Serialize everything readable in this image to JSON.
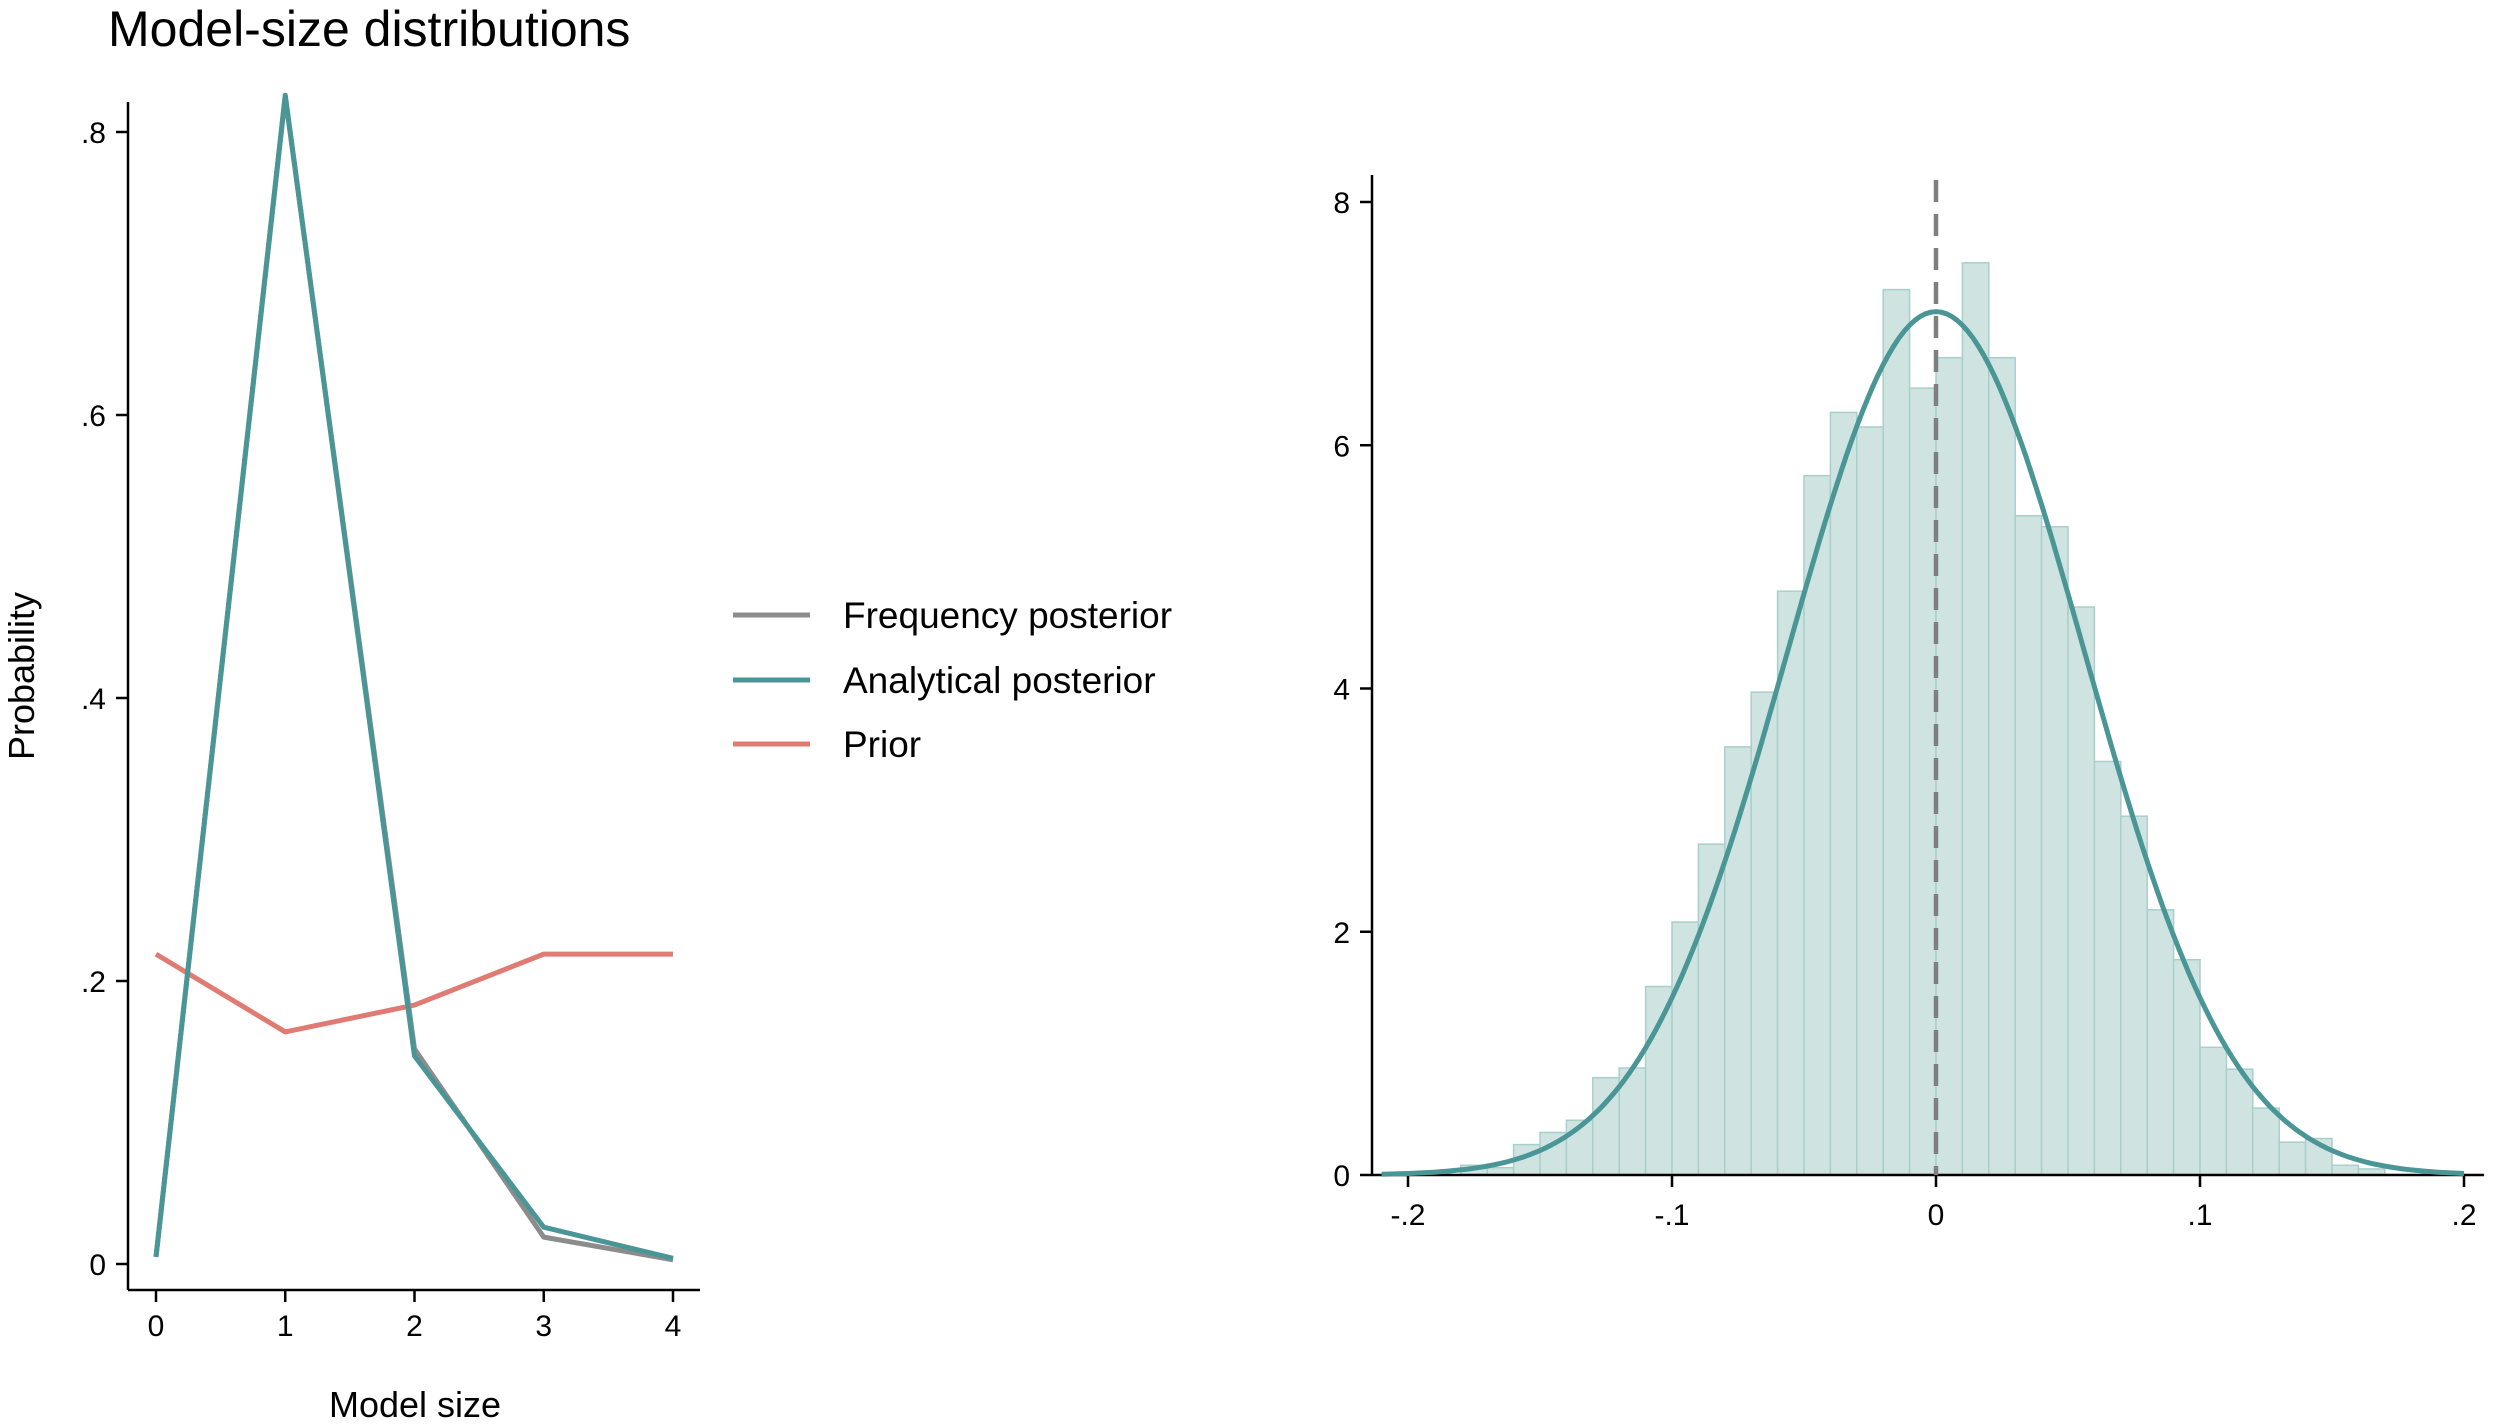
{
  "chart_data": [
    {
      "type": "line",
      "title": "Model-size distributions",
      "xlabel": "Model size",
      "ylabel": "Probability",
      "x": [
        0,
        1,
        2,
        3,
        4
      ],
      "xlim": [
        0,
        4
      ],
      "ylim": [
        0,
        0.8
      ],
      "xticks": [
        "0",
        "1",
        "2",
        "3",
        "4"
      ],
      "yticks": [
        "0",
        ".2",
        ".4",
        ".6",
        ".8"
      ],
      "ytick_values": [
        0,
        0.2,
        0.4,
        0.6,
        0.8
      ],
      "grid": false,
      "legend_position": "right",
      "series": [
        {
          "name": "Frequency posterior",
          "color": "#8c8c8c",
          "values": [
            0.005,
            0.825,
            0.152,
            0.019,
            0.003
          ]
        },
        {
          "name": "Analytical posterior",
          "color": "#4a9696",
          "values": [
            0.005,
            0.826,
            0.147,
            0.026,
            0.004
          ]
        },
        {
          "name": "Prior",
          "color": "#e07b73",
          "values": [
            0.219,
            0.164,
            0.183,
            0.219,
            0.219
          ]
        }
      ]
    },
    {
      "type": "bar",
      "subtype": "histogram with fitted normal density",
      "title": "",
      "xlabel": "",
      "ylabel": "",
      "xlim": [
        -0.2,
        0.2
      ],
      "ylim": [
        0,
        8
      ],
      "xticks": [
        "-.2",
        "-.1",
        "0",
        ".1",
        ".2"
      ],
      "xtick_values": [
        -0.2,
        -0.1,
        0,
        0.1,
        0.2
      ],
      "yticks": [
        "0",
        "2",
        "4",
        "6",
        "8"
      ],
      "ytick_values": [
        0,
        2,
        4,
        6,
        8
      ],
      "grid": false,
      "bar_color": "#cfe3e1",
      "bar_edge_color": "#a9cfcb",
      "density_color": "#4a9696",
      "reference_line": {
        "x": 0,
        "style": "dashed",
        "color": "#7f7f7f"
      },
      "bin_width": 0.01,
      "bin_starts": [
        -0.18,
        -0.17,
        -0.16,
        -0.15,
        -0.14,
        -0.13,
        -0.12,
        -0.11,
        -0.1,
        -0.09,
        -0.08,
        -0.07,
        -0.06,
        -0.05,
        -0.04,
        -0.03,
        -0.02,
        -0.01,
        0.0,
        0.01,
        0.02,
        0.03,
        0.04,
        0.05,
        0.06,
        0.07,
        0.08,
        0.09,
        0.1,
        0.11,
        0.12,
        0.13,
        0.14,
        0.15,
        0.16
      ],
      "values": [
        0.08,
        0.06,
        0.25,
        0.35,
        0.45,
        0.8,
        0.88,
        1.55,
        2.08,
        2.72,
        3.52,
        3.97,
        4.8,
        5.75,
        6.27,
        6.15,
        7.28,
        6.47,
        6.72,
        7.5,
        6.72,
        5.42,
        5.33,
        4.67,
        3.4,
        2.95,
        2.18,
        1.77,
        1.05,
        0.87,
        0.55,
        0.27,
        0.3,
        0.08,
        0.05
      ],
      "density": {
        "distribution": "normal",
        "mean": 0,
        "sd": 0.0562
      }
    }
  ]
}
